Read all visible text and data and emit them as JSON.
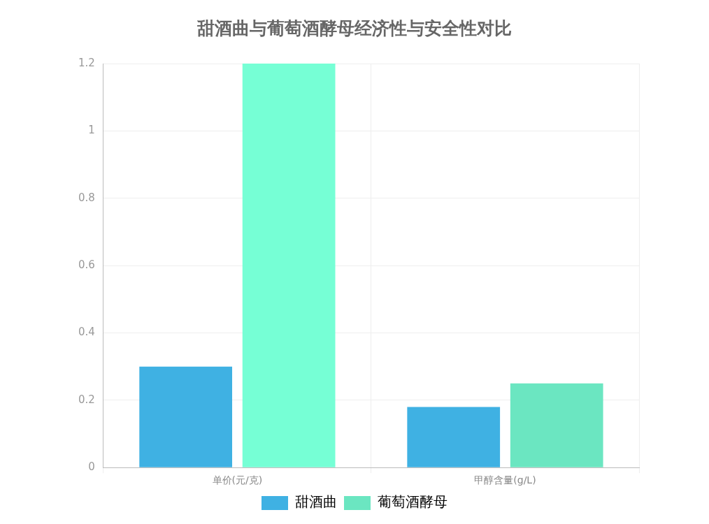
{
  "chart_data": {
    "type": "bar",
    "title": "甜酒曲与葡萄酒酵母经济性与安全性对比",
    "categories": [
      "单价(元/克)",
      "甲醇含量(g/L)"
    ],
    "series": [
      {
        "name": "甜酒曲",
        "color": "#3fb1e3",
        "values": [
          0.3,
          0.18
        ]
      },
      {
        "name": "葡萄酒酵母",
        "color": "#6be6c1",
        "colors": [
          "#76ffd5",
          "#6be6c1"
        ],
        "values": [
          1.2,
          0.25
        ]
      }
    ],
    "ylim": [
      0,
      1.2
    ],
    "yticks": [
      0,
      0.2,
      0.4,
      0.6,
      0.8,
      1,
      1.2
    ],
    "grid": true,
    "legend": "bottom"
  }
}
